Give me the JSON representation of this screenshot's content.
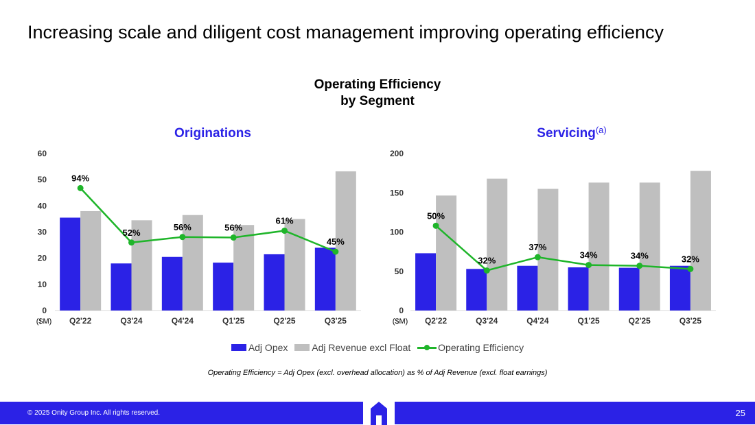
{
  "slide": {
    "title": "Increasing scale and diligent cost management improving operating efficiency",
    "chart_heading_line1": "Operating Efficiency",
    "chart_heading_line2": "by Segment",
    "footnote": "Operating Efficiency = Adj Opex (excl. overhead allocation) as % of Adj Revenue (excl. float earnings)",
    "copyright": "© 2025 Onity Group Inc. All rights reserved.",
    "page_number": "25"
  },
  "legend": {
    "items": [
      "Adj Opex",
      "Adj Revenue excl Float",
      "Operating Efficiency"
    ]
  },
  "colors": {
    "opex": "#2b22e6",
    "revenue": "#bfbfbf",
    "efficiency": "#1fb52a",
    "brand": "#2b22e6"
  },
  "chart_data": [
    {
      "type": "bar",
      "title": "Originations",
      "title_sup": "",
      "unit_label": "($M)",
      "categories": [
        "Q2'22",
        "Q3'24",
        "Q4'24",
        "Q1'25",
        "Q2'25",
        "Q3'25"
      ],
      "ylim": [
        0,
        60
      ],
      "yticks": [
        0,
        10,
        20,
        30,
        40,
        50,
        60
      ],
      "series": [
        {
          "name": "Adj Opex",
          "values": [
            35.5,
            18,
            20.5,
            18.3,
            21.5,
            24
          ]
        },
        {
          "name": "Adj Revenue excl Float",
          "values": [
            38,
            34.5,
            36.5,
            32.7,
            35,
            53.2
          ]
        }
      ],
      "line": {
        "name": "Operating Efficiency",
        "plot_values": [
          46.8,
          26,
          28.1,
          27.9,
          30.5,
          22.5
        ],
        "labels": [
          "94%",
          "52%",
          "56%",
          "56%",
          "61%",
          "45%"
        ]
      }
    },
    {
      "type": "bar",
      "title": "Servicing",
      "title_sup": "(a)",
      "unit_label": "($M)",
      "categories": [
        "Q2'22",
        "Q3'24",
        "Q4'24",
        "Q1'25",
        "Q2'25",
        "Q3'25"
      ],
      "ylim": [
        0,
        200
      ],
      "yticks": [
        0,
        50,
        100,
        150,
        200
      ],
      "series": [
        {
          "name": "Adj Opex",
          "values": [
            73,
            53,
            57,
            55,
            54.5,
            57
          ]
        },
        {
          "name": "Adj Revenue excl Float",
          "values": [
            146.5,
            168,
            155,
            163,
            163,
            178
          ]
        }
      ],
      "line": {
        "name": "Operating Efficiency",
        "plot_values": [
          108,
          51,
          68,
          58,
          57,
          53
        ],
        "labels": [
          "50%",
          "32%",
          "37%",
          "34%",
          "34%",
          "32%"
        ]
      }
    }
  ]
}
